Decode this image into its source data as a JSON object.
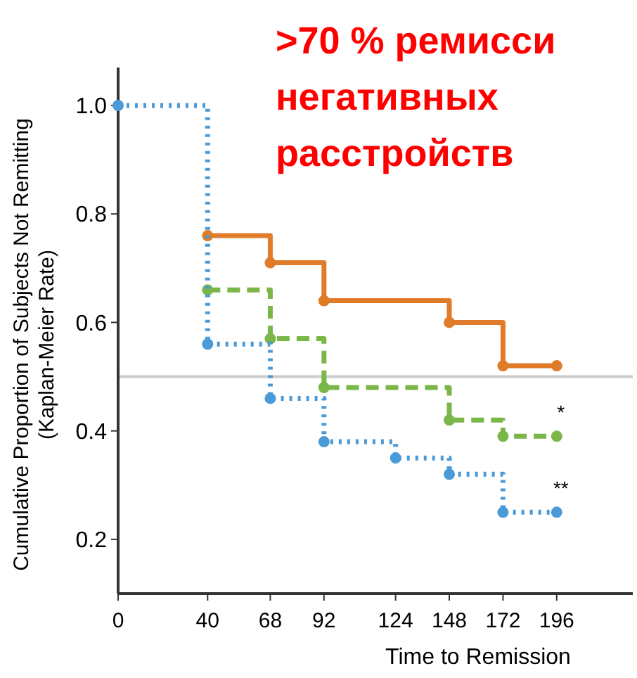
{
  "chart_data": {
    "type": "step",
    "xlabel": "Time to Remission",
    "ylabel": "Cumulative Proportion of Subjects Not Remitting\n(Kaplan-Meier Rate)",
    "annotations": [
      ">70 % ремисси",
      "негативных",
      "расстройств",
      {
        "text": "*",
        "x": 196,
        "y": 0.39
      },
      {
        "text": "**",
        "x": 196,
        "y": 0.25
      }
    ],
    "xlim": [
      0,
      230
    ],
    "xticks": [
      0,
      40,
      68,
      92,
      124,
      148,
      172,
      196
    ],
    "ylim": [
      0.1,
      1.07
    ],
    "yticks": [
      0.2,
      0.4,
      0.6,
      0.8,
      {
        "value": 1,
        "label": "1.0"
      }
    ],
    "grid": false,
    "marker": "circle",
    "ref_lines": [
      {
        "axis": "y",
        "value": 0.5,
        "color": "#cccccc"
      }
    ],
    "series": [
      {
        "color": "#e07b29",
        "line_style": "solid",
        "x": [
          40,
          68,
          92,
          148,
          172,
          196
        ],
        "values": [
          0.76,
          0.71,
          0.64,
          0.6,
          0.52,
          0.52
        ]
      },
      {
        "color": "#7ab648",
        "line_style": "dashed",
        "x": [
          40,
          68,
          92,
          148,
          172,
          196
        ],
        "values": [
          0.66,
          0.57,
          0.48,
          0.42,
          0.39,
          0.39
        ]
      },
      {
        "color": "#4a9ad8",
        "line_style": "dotted",
        "x": [
          0,
          40,
          68,
          92,
          124,
          148,
          172,
          196
        ],
        "values": [
          1,
          0.56,
          0.46,
          0.38,
          0.35,
          0.32,
          0.25,
          0.25
        ]
      }
    ]
  }
}
